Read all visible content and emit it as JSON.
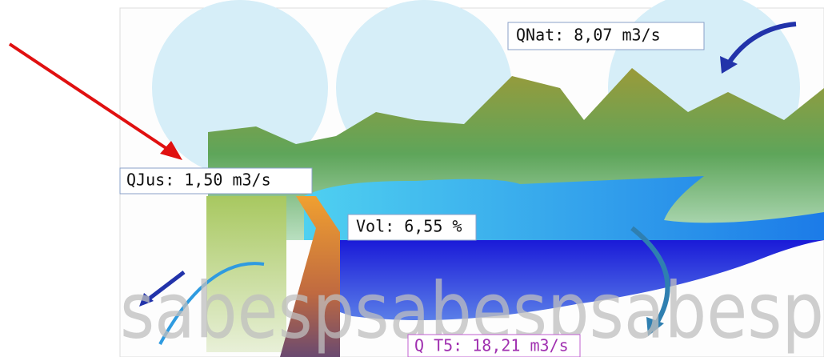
{
  "watermark": "sabespsabespsabesp",
  "labels": {
    "qnat": "QNat: 8,07 m3/s",
    "qjus": "QJus: 1,50 m3/s",
    "vol": "Vol: 6,55 %",
    "qt5": "Q T5: 18,21 m3/s"
  }
}
